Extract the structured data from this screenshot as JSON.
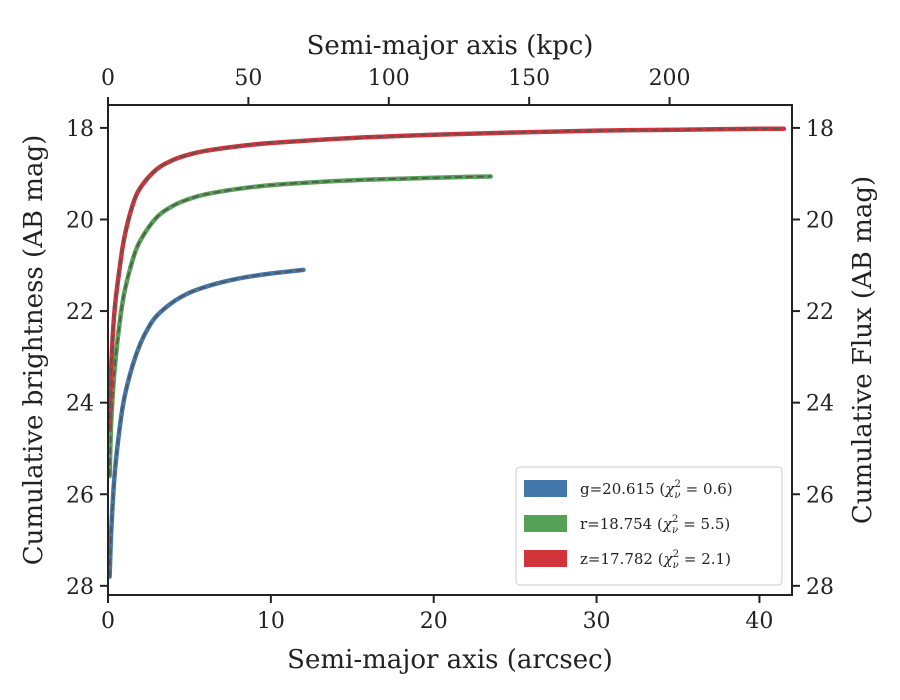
{
  "chart_data": {
    "type": "line",
    "xlabel": "Semi-major axis (arcsec)",
    "ylabel": "Cumulative brightness (AB mag)",
    "x2label": "Semi-major axis (kpc)",
    "y2label": "Cumulative Flux (AB mag)",
    "xlim": [
      0,
      42
    ],
    "ylim": [
      28.2,
      17.5
    ],
    "x2lim": [
      0,
      243.6
    ],
    "xticks": [
      0,
      10,
      20,
      30,
      40
    ],
    "yticks": [
      18,
      20,
      22,
      24,
      26,
      28
    ],
    "x2ticks": [
      0,
      50,
      100,
      150,
      200
    ],
    "grid": false,
    "legend_placement": "lower-right",
    "series": [
      {
        "name": "g=20.615 (χ²ᵥ = 0.6)",
        "label_main": "g=20.615 (",
        "label_tail": " = 0.6)",
        "color": "#4477aa",
        "x": [
          0.1,
          0.2,
          0.4,
          0.7,
          1.0,
          1.5,
          2.0,
          2.5,
          3.0,
          4.0,
          5.0,
          6.0,
          7.0,
          8.0,
          9.0,
          10.0,
          11.0,
          12.0
        ],
        "y": [
          27.8,
          26.8,
          25.6,
          24.6,
          23.9,
          23.2,
          22.7,
          22.35,
          22.1,
          21.8,
          21.6,
          21.47,
          21.37,
          21.29,
          21.23,
          21.18,
          21.14,
          21.1
        ]
      },
      {
        "name": "r=18.754 (χ²ᵥ = 5.5)",
        "label_main": "r=18.754 (",
        "label_tail": " = 5.5)",
        "color": "#55a155",
        "x": [
          0.1,
          0.2,
          0.4,
          0.7,
          1.0,
          1.5,
          2.0,
          3.0,
          4.0,
          5.0,
          6.0,
          8.0,
          10.0,
          12.0,
          14.0,
          16.0,
          18.0,
          20.0,
          22.0,
          23.5
        ],
        "y": [
          25.6,
          24.4,
          23.3,
          22.3,
          21.6,
          20.9,
          20.45,
          19.95,
          19.7,
          19.55,
          19.45,
          19.33,
          19.25,
          19.2,
          19.16,
          19.13,
          19.11,
          19.09,
          19.07,
          19.06
        ]
      },
      {
        "name": "z=17.782 (χ²ᵥ = 2.1)",
        "label_main": "z=17.782 (",
        "label_tail": " = 2.1)",
        "color": "#d1343b",
        "x": [
          0.1,
          0.2,
          0.4,
          0.7,
          1.0,
          1.5,
          2.0,
          3.0,
          4.0,
          5.0,
          6.0,
          8.0,
          10.0,
          15.0,
          20.0,
          25.0,
          30.0,
          35.0,
          40.0,
          41.5
        ],
        "y": [
          24.6,
          23.2,
          22.0,
          21.1,
          20.4,
          19.7,
          19.3,
          18.9,
          18.7,
          18.58,
          18.5,
          18.4,
          18.33,
          18.22,
          18.15,
          18.1,
          18.06,
          18.04,
          18.02,
          18.02
        ]
      }
    ]
  }
}
